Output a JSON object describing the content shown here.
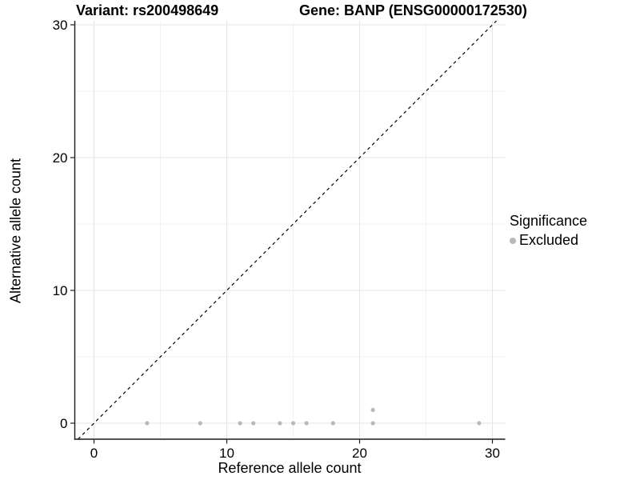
{
  "figure": {
    "title_left": "Variant: rs200498649",
    "title_right": "Gene: BANP (ENSG00000172530)"
  },
  "axes": {
    "x_label": "Reference allele count",
    "y_label": "Alternative allele count"
  },
  "legend": {
    "title": "Significance",
    "entries": [
      {
        "label": "Excluded",
        "color": "#b9b9b9"
      }
    ]
  },
  "colors": {
    "point": "#b9b9b9",
    "grid_major": "#e6e6e6",
    "grid_minor": "#f3f3f3",
    "axis_line": "#1a1a1a",
    "identity_line": "#000000",
    "tick_text": "#000000"
  },
  "chart_data": {
    "type": "scatter",
    "title": "Variant: rs200498649    Gene: BANP (ENSG00000172530)",
    "xlabel": "Reference allele count",
    "ylabel": "Alternative allele count",
    "xlim": [
      -1.5,
      31
    ],
    "ylim": [
      -1.2,
      30.3
    ],
    "x_ticks": [
      0,
      10,
      20,
      30
    ],
    "y_ticks": [
      0,
      10,
      20,
      30
    ],
    "x_minor_ticks": [
      5,
      15,
      25
    ],
    "y_minor_ticks": [
      5,
      15,
      25
    ],
    "grid": true,
    "legend_position": "right",
    "identity_line": {
      "style": "dashed",
      "equation": "y = x"
    },
    "series": [
      {
        "name": "Excluded",
        "color": "#b9b9b9",
        "points": [
          [
            4,
            0
          ],
          [
            8,
            0
          ],
          [
            11,
            0
          ],
          [
            12,
            0
          ],
          [
            14,
            0
          ],
          [
            15,
            0
          ],
          [
            16,
            0
          ],
          [
            18,
            0
          ],
          [
            21,
            0
          ],
          [
            21,
            1
          ],
          [
            29,
            0
          ]
        ]
      }
    ]
  }
}
